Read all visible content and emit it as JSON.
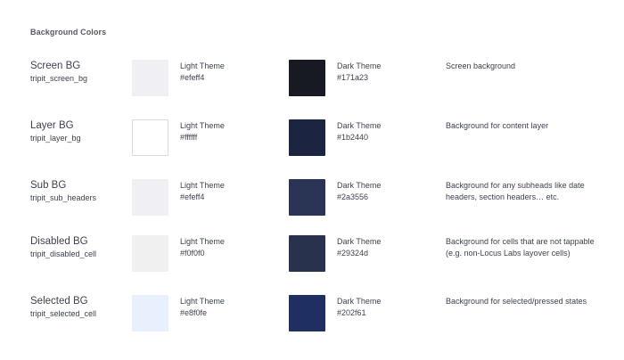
{
  "section_title": "Background Colors",
  "rows": [
    {
      "name": "Screen BG",
      "token": "tripit_screen_bg",
      "light": {
        "label": "Light Theme",
        "hex": "#efeff4",
        "color": "#efeff4"
      },
      "dark": {
        "label": "Dark Theme",
        "hex": "#171a23",
        "color": "#171a23"
      },
      "description": "Screen background"
    },
    {
      "name": "Layer BG",
      "token": "tripit_layer_bg",
      "light": {
        "label": "Light Theme",
        "hex": "#ffffff",
        "color": "#ffffff"
      },
      "dark": {
        "label": "Dark Theme",
        "hex": "#1b2440",
        "color": "#1b2440"
      },
      "description": "Background for content layer"
    },
    {
      "name": "Sub BG",
      "token": "tripit_sub_headers",
      "light": {
        "label": "Light Theme",
        "hex": "#efeff4",
        "color": "#efeff4"
      },
      "dark": {
        "label": "Dark Theme",
        "hex": "#2a3556",
        "color": "#2a3556"
      },
      "description": "Background for any subheads like date headers, section headers… etc."
    },
    {
      "name": "Disabled BG",
      "token": "tripit_disabled_cell",
      "light": {
        "label": "Light Theme",
        "hex": "#f0f0f0",
        "color": "#f0f0f0"
      },
      "dark": {
        "label": "Dark Theme",
        "hex": "#29324d",
        "color": "#29324d"
      },
      "description": "Background for cells that are not tappable (e.g. non-Locus Labs layover cells)"
    },
    {
      "name": "Selected BG",
      "token": "tripit_selected_cell",
      "light": {
        "label": "Light Theme",
        "hex": "#e8f0fe",
        "color": "#e8f0fe"
      },
      "dark": {
        "label": "Dark Theme",
        "hex": "#202f61",
        "color": "#202f61"
      },
      "description": "Background for selected/pressed states"
    }
  ]
}
